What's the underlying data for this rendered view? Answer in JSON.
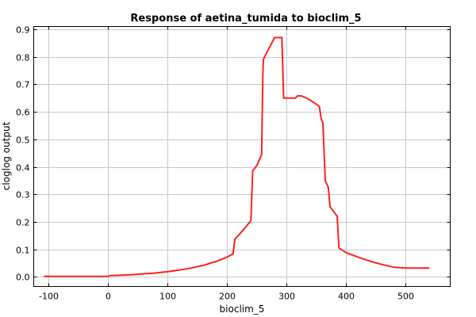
{
  "chart_data": {
    "type": "line",
    "title": "Response of aetina_tumida to bioclim_5",
    "xlabel": "bioclim_5",
    "ylabel": "cloglog output",
    "xlim": [
      -125,
      575
    ],
    "ylim": [
      -0.035,
      0.91
    ],
    "xticks": [
      -100,
      0,
      100,
      200,
      300,
      400,
      500
    ],
    "yticks": [
      0.0,
      0.1,
      0.2,
      0.3,
      0.4,
      0.5,
      0.6,
      0.7,
      0.8,
      0.9
    ],
    "grid": true,
    "series_color": "#ff2020",
    "series": [
      {
        "x": [
          -108,
          -50,
          0,
          5,
          10,
          40,
          60,
          80,
          100,
          120,
          140,
          160,
          180,
          200,
          210,
          213,
          220,
          230,
          240,
          243,
          250,
          258,
          260,
          261,
          263,
          270,
          280,
          285,
          292,
          295,
          310,
          315,
          318,
          325,
          335,
          345,
          355,
          358,
          361,
          365,
          370,
          373,
          385,
          388,
          400,
          420,
          440,
          460,
          480,
          500,
          520,
          540
        ],
        "y": [
          0.002,
          0.002,
          0.002,
          0.005,
          0.005,
          0.008,
          0.011,
          0.014,
          0.019,
          0.025,
          0.032,
          0.042,
          0.055,
          0.072,
          0.084,
          0.137,
          0.153,
          0.178,
          0.205,
          0.385,
          0.405,
          0.445,
          0.733,
          0.79,
          0.8,
          0.83,
          0.87,
          0.87,
          0.87,
          0.65,
          0.65,
          0.65,
          0.658,
          0.658,
          0.648,
          0.635,
          0.62,
          0.575,
          0.56,
          0.35,
          0.325,
          0.255,
          0.22,
          0.105,
          0.088,
          0.072,
          0.057,
          0.045,
          0.035,
          0.032,
          0.032,
          0.032
        ]
      }
    ]
  }
}
